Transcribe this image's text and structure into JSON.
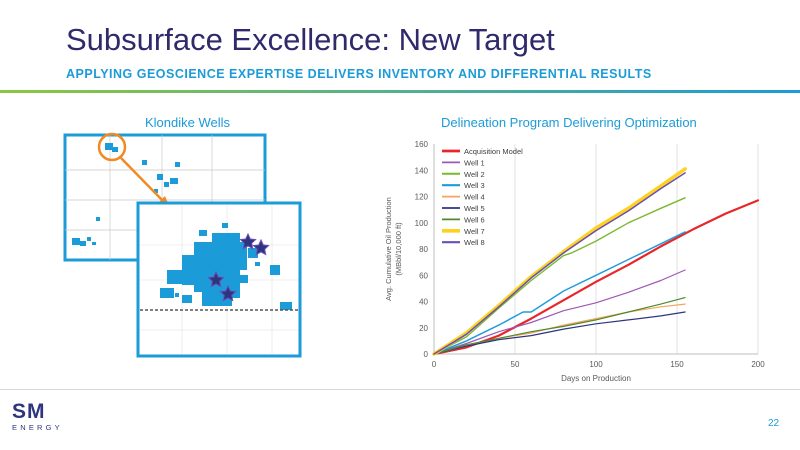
{
  "slide": {
    "title": "Subsurface Excellence: New Target",
    "subtitle": "APPLYING GEOSCIENCE EXPERTISE DELIVERS INVENTORY AND DIFFERENTIAL RESULTS",
    "page_number": "22"
  },
  "logo": {
    "mark": "SM",
    "word": "ENERGY"
  },
  "map_panel": {
    "title": "Klondike Wells",
    "well_count": 4
  },
  "chart_data": {
    "type": "line",
    "title": "Delineation Program Delivering Optimization",
    "xlabel": "Days on Production",
    "ylabel_line1": "Avg. Cumulative Oil Production",
    "ylabel_line2": "(MBbl/10,000 ft)",
    "xlim": [
      0,
      200
    ],
    "ylim": [
      0,
      160
    ],
    "x_ticks": [
      0,
      50,
      100,
      150,
      200
    ],
    "y_ticks": [
      0,
      20,
      40,
      60,
      80,
      100,
      120,
      140,
      160
    ],
    "grid": "vertical",
    "legend_placement": "top-left",
    "series": [
      {
        "name": "Acquisition Model",
        "color": "#e8262a",
        "width": 2.2,
        "points": [
          [
            0,
            0
          ],
          [
            20,
            5
          ],
          [
            40,
            14
          ],
          [
            60,
            27
          ],
          [
            80,
            41
          ],
          [
            100,
            55
          ],
          [
            120,
            68
          ],
          [
            140,
            82
          ],
          [
            160,
            95
          ],
          [
            180,
            107
          ],
          [
            200,
            117
          ]
        ]
      },
      {
        "name": "Well 1",
        "color": "#9b59b6",
        "width": 1.2,
        "points": [
          [
            0,
            0
          ],
          [
            20,
            8
          ],
          [
            40,
            17
          ],
          [
            60,
            24
          ],
          [
            80,
            33
          ],
          [
            100,
            39
          ],
          [
            120,
            47
          ],
          [
            140,
            56
          ],
          [
            155,
            64
          ]
        ]
      },
      {
        "name": "Well 2",
        "color": "#7cb82f",
        "width": 1.4,
        "points": [
          [
            0,
            0
          ],
          [
            20,
            13
          ],
          [
            40,
            35
          ],
          [
            60,
            56
          ],
          [
            80,
            75
          ],
          [
            85,
            77
          ],
          [
            100,
            86
          ],
          [
            120,
            100
          ],
          [
            140,
            111
          ],
          [
            155,
            119
          ]
        ]
      },
      {
        "name": "Well 3",
        "color": "#1f9ddb",
        "width": 1.5,
        "points": [
          [
            0,
            0
          ],
          [
            20,
            10
          ],
          [
            40,
            22
          ],
          [
            55,
            32
          ],
          [
            60,
            32
          ],
          [
            80,
            48
          ],
          [
            100,
            60
          ],
          [
            120,
            72
          ],
          [
            140,
            84
          ],
          [
            155,
            93
          ]
        ]
      },
      {
        "name": "Well 4",
        "color": "#f4a460",
        "width": 1.2,
        "points": [
          [
            0,
            0
          ],
          [
            20,
            6
          ],
          [
            40,
            12
          ],
          [
            60,
            16
          ],
          [
            80,
            22
          ],
          [
            100,
            27
          ],
          [
            120,
            32
          ],
          [
            140,
            36
          ],
          [
            155,
            38
          ]
        ]
      },
      {
        "name": "Well 5",
        "color": "#2e3580",
        "width": 1.2,
        "points": [
          [
            0,
            0
          ],
          [
            20,
            6
          ],
          [
            40,
            11
          ],
          [
            60,
            14
          ],
          [
            80,
            19
          ],
          [
            100,
            23
          ],
          [
            120,
            26
          ],
          [
            140,
            29
          ],
          [
            155,
            32
          ]
        ]
      },
      {
        "name": "Well 6",
        "color": "#4e8a2b",
        "width": 1.2,
        "points": [
          [
            0,
            0
          ],
          [
            20,
            7
          ],
          [
            40,
            12
          ],
          [
            60,
            17
          ],
          [
            80,
            21
          ],
          [
            100,
            26
          ],
          [
            120,
            32
          ],
          [
            140,
            38
          ],
          [
            155,
            43
          ]
        ]
      },
      {
        "name": "Well 7",
        "color": "#ffd21f",
        "width": 3.5,
        "points": [
          [
            0,
            0
          ],
          [
            20,
            16
          ],
          [
            40,
            37
          ],
          [
            60,
            59
          ],
          [
            80,
            78
          ],
          [
            100,
            96
          ],
          [
            120,
            111
          ],
          [
            140,
            128
          ],
          [
            155,
            141
          ]
        ]
      },
      {
        "name": "Well 8",
        "color": "#6a4fb5",
        "width": 1.5,
        "points": [
          [
            0,
            0
          ],
          [
            20,
            15
          ],
          [
            40,
            36
          ],
          [
            60,
            58
          ],
          [
            80,
            77
          ],
          [
            100,
            94
          ],
          [
            120,
            109
          ],
          [
            140,
            126
          ],
          [
            155,
            138
          ]
        ]
      }
    ]
  }
}
